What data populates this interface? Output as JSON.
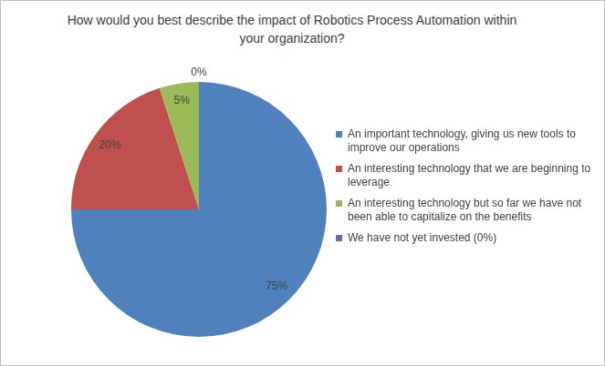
{
  "chart_data": {
    "type": "pie",
    "title": "How would you best describe the impact of Robotics Process Automation within your organization?",
    "categories": [
      "An important technology, giving us new tools to improve our operations",
      "An interesting technology that we are beginning to leverage",
      "An interesting technology but so far we have not been able to capitalize on the benefits",
      "We have not yet invested (0%)"
    ],
    "values": [
      75,
      20,
      5,
      0
    ],
    "value_labels": [
      "75%",
      "20%",
      "5%",
      "0%"
    ],
    "colors": [
      "#4f81bd",
      "#c0504d",
      "#9bbb59",
      "#8064a2"
    ],
    "data_labels": true,
    "legend": "right"
  }
}
